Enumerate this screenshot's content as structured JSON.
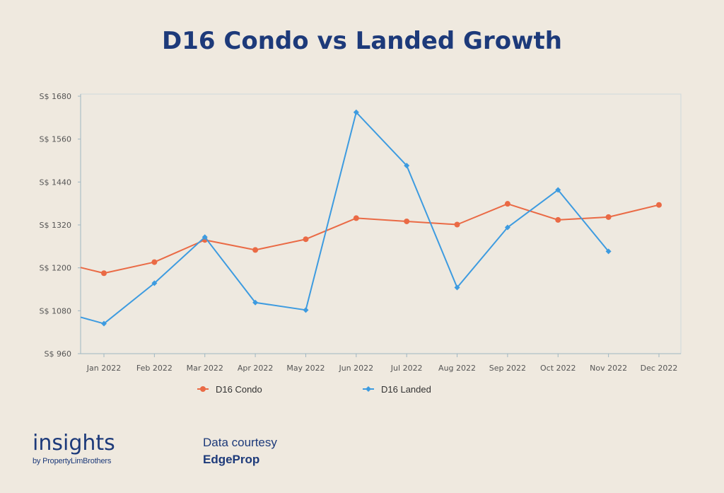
{
  "title": "D16 Condo vs Landed Growth",
  "chart_data": {
    "type": "line",
    "title": "D16 Condo vs Landed Growth",
    "xlabel": "",
    "ylabel": "",
    "categories": [
      "Jan 2022",
      "Feb 2022",
      "Mar 2022",
      "Apr 2022",
      "May 2022",
      "Jun 2022",
      "Jul 2022",
      "Aug 2022",
      "Sep 2022",
      "Oct 2022",
      "Nov 2022",
      "Dec 2022"
    ],
    "y_ticks": [
      "S$ 960",
      "S$ 1080",
      "S$ 1200",
      "S$ 1320",
      "S$ 1440",
      "S$ 1560",
      "S$ 1680"
    ],
    "ylim": [
      960,
      1680
    ],
    "grid": false,
    "legend_position": "bottom",
    "series": [
      {
        "name": "D16 Condo",
        "color": "#ea6a45",
        "marker": "circle",
        "start_value": 1201,
        "values": [
          1185,
          1216,
          1278,
          1250,
          1280,
          1339,
          1330,
          1321,
          1379,
          1334,
          1342,
          1376
        ]
      },
      {
        "name": "D16 Landed",
        "color": "#3d9be0",
        "marker": "diamond",
        "start_value": 1062,
        "values": [
          1044,
          1157,
          1286,
          1103,
          1082,
          1635,
          1486,
          1145,
          1313,
          1418,
          1246,
          null
        ]
      }
    ]
  },
  "brand": {
    "name": "insights",
    "tagline": "by PropertyLimBrothers"
  },
  "credit": {
    "line1": "Data courtesy",
    "line2": "EdgeProp"
  }
}
